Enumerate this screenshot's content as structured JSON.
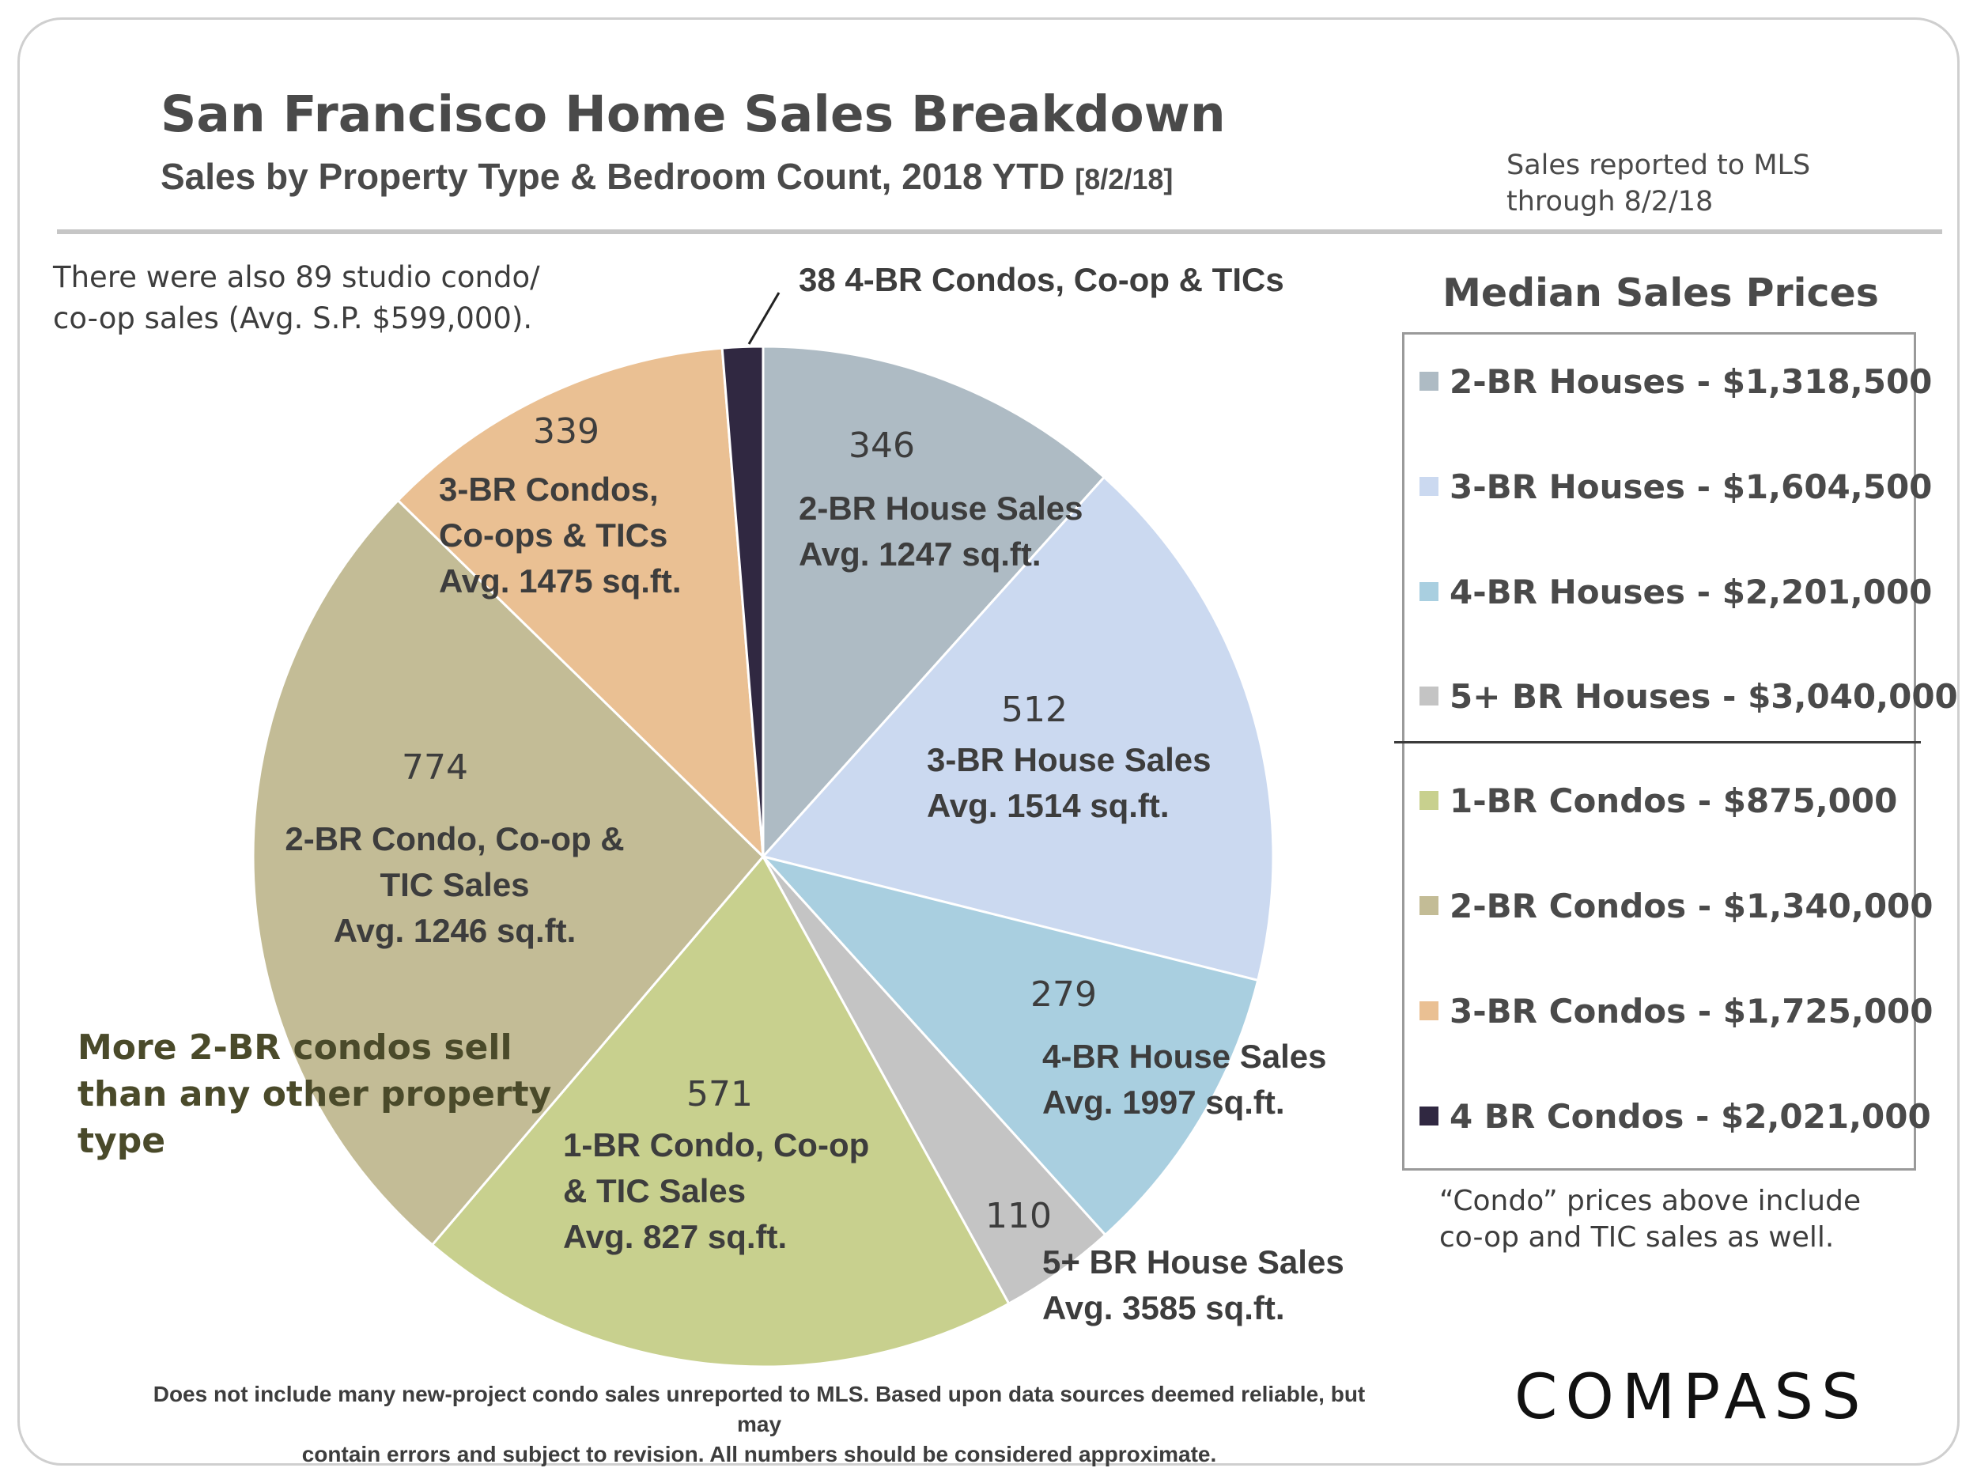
{
  "title": "San Francisco Home Sales Breakdown",
  "subtitle": "Sales by Property Type & Bedroom Count, 2018 YTD",
  "subtitle_date": "[8/2/18]",
  "reported_note": [
    "Sales reported to MLS",
    "through 8/2/18"
  ],
  "studio_note": [
    "There were also 89 studio condo/",
    "co-op sales (Avg. S.P. $599,000)."
  ],
  "callout": [
    "More 2-BR condos sell",
    "than any other property",
    "type"
  ],
  "footer": [
    "Does not include many new-project condo sales unreported to MLS.  Based upon data sources deemed reliable, but may",
    "contain errors and subject to revision. All numbers should be considered approximate."
  ],
  "logo": "COMPASS",
  "legend": {
    "title": "Median Sales Prices",
    "items": [
      {
        "label": "2-BR Houses - $1,318,500",
        "color": "#aebbc4"
      },
      {
        "label": "3-BR Houses - $1,604,500",
        "color": "#cbd9f0"
      },
      {
        "label": "4-BR Houses - $2,201,000",
        "color": "#a9cfe0"
      },
      {
        "label": "5+ BR Houses - $3,040,000",
        "color": "#c4c4c4"
      },
      {
        "label": "1-BR Condos - $875,000",
        "color": "#c8d08e"
      },
      {
        "label": "2-BR Condos - $1,340,000",
        "color": "#c3bc96"
      },
      {
        "label": "3-BR Condos - $1,725,000",
        "color": "#eac093"
      },
      {
        "label": "4 BR Condos - $2,021,000",
        "color": "#302841"
      }
    ],
    "condo_note": [
      "“Condo” prices above include",
      "co-op and TIC sales as well."
    ]
  },
  "chart_data": {
    "type": "pie",
    "slices": [
      {
        "value": 346,
        "count_label": "346",
        "label": [
          "2-BR House Sales",
          "Avg. 1247 sq.ft."
        ],
        "color": "#aebbc4"
      },
      {
        "value": 512,
        "count_label": "512",
        "label": [
          "3-BR House Sales",
          "Avg. 1514 sq.ft."
        ],
        "color": "#cbd9f0"
      },
      {
        "value": 279,
        "count_label": "279",
        "label": [
          "4-BR House Sales",
          "Avg. 1997 sq.ft."
        ],
        "color": "#a9cfe0"
      },
      {
        "value": 110,
        "count_label": "110",
        "label": [
          "5+ BR House Sales",
          "Avg. 3585 sq.ft."
        ],
        "color": "#c4c4c4"
      },
      {
        "value": 571,
        "count_label": "571",
        "label": [
          "1-BR Condo, Co-op",
          "& TIC Sales",
          "Avg. 827 sq.ft."
        ],
        "color": "#c8d08e"
      },
      {
        "value": 774,
        "count_label": "774",
        "label": [
          "2-BR Condo, Co-op &",
          "TIC Sales",
          "Avg. 1246 sq.ft."
        ],
        "color": "#c3bc96"
      },
      {
        "value": 339,
        "count_label": "339",
        "label": [
          "3-BR Condos,",
          "Co-ops & TICs",
          "Avg. 1475 sq.ft."
        ],
        "color": "#eac093"
      },
      {
        "value": 38,
        "count_label": "",
        "label": [
          "38 4-BR Condos, Co-op & TICs"
        ],
        "color": "#302841"
      }
    ]
  }
}
